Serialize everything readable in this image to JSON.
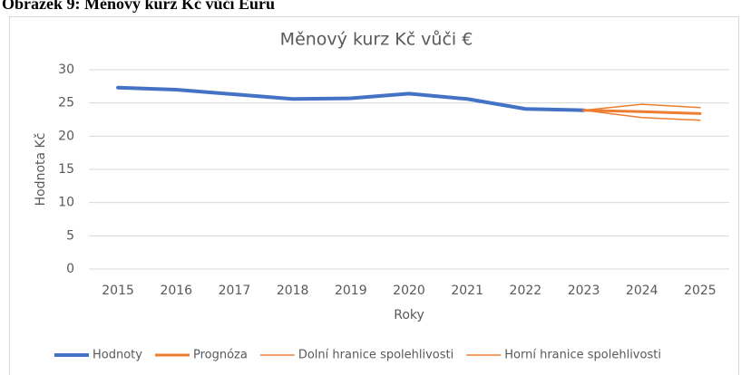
{
  "caption": "Obrázek 9: Měnový kurz Kč vůči Euru",
  "chart_data": {
    "type": "line",
    "title": "Měnový kurz Kč vůči €",
    "x_label": "Roky",
    "y_label": "Hodnota Kč",
    "categories": [
      "2015",
      "2016",
      "2017",
      "2018",
      "2019",
      "2020",
      "2021",
      "2022",
      "2023",
      "2024",
      "2025"
    ],
    "series": [
      {
        "name": "Hodnoty",
        "color": "#4472c4",
        "width": 4,
        "values": [
          27.3,
          27.0,
          26.3,
          25.6,
          25.7,
          26.4,
          25.6,
          24.1,
          23.9,
          null,
          null
        ]
      },
      {
        "name": "Prognóza",
        "color": "#ed7d31",
        "width": 3,
        "values": [
          null,
          null,
          null,
          null,
          null,
          null,
          null,
          null,
          23.9,
          23.7,
          23.4
        ]
      },
      {
        "name": "Dolní hranice spolehlivosti",
        "color": "#ed7d31",
        "width": 1.5,
        "values": [
          null,
          null,
          null,
          null,
          null,
          null,
          null,
          null,
          23.9,
          22.8,
          22.4
        ]
      },
      {
        "name": "Horní hranice spolehlivosti",
        "color": "#ed7d31",
        "width": 1.5,
        "values": [
          null,
          null,
          null,
          null,
          null,
          null,
          null,
          null,
          23.9,
          24.8,
          24.3
        ]
      }
    ],
    "ylim": [
      0,
      30
    ],
    "yticks": [
      0,
      5,
      10,
      15,
      20,
      25,
      30
    ],
    "grid": true,
    "legend": "bottom"
  }
}
